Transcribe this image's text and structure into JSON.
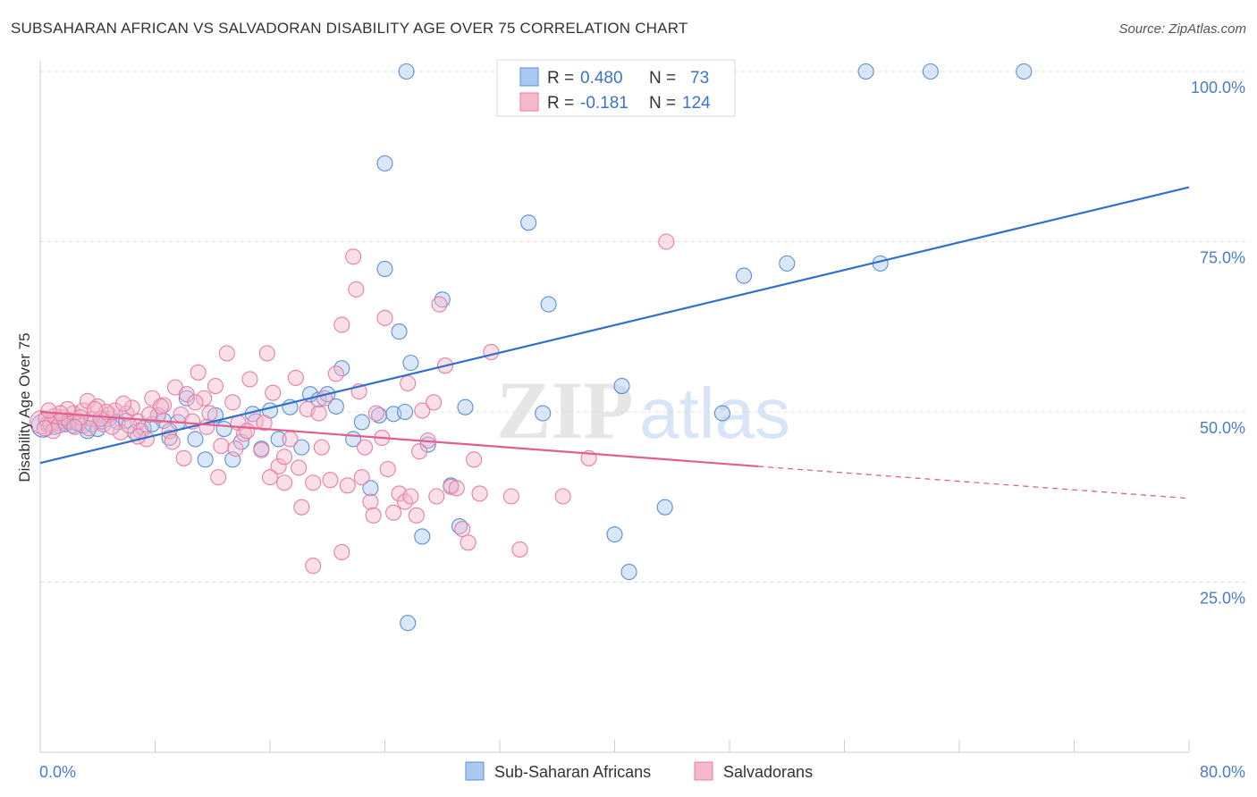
{
  "title": "SUBSAHARAN AFRICAN VS SALVADORAN DISABILITY AGE OVER 75 CORRELATION CHART",
  "source": "Source: ZipAtlas.com",
  "watermark": {
    "zip": "ZIP",
    "atlas": "atlas"
  },
  "legend": {
    "r_label": "R =",
    "n_label": "N =",
    "entries": [
      {
        "r": "0.480",
        "n": "73"
      },
      {
        "r": "-0.181",
        "n": "124"
      }
    ]
  },
  "colors": {
    "blue_fill": "#aac9f0",
    "blue_stroke": "#5b8fd8",
    "blue_line": "#2f6fcf",
    "pink_fill": "#f5b8cb",
    "pink_stroke": "#e67fa3",
    "pink_line": "#e05f8f",
    "tick_text": "#4a7cc9",
    "grid": "#dddddd"
  },
  "chart_data": {
    "type": "scatter",
    "xlabel": "",
    "ylabel": "Disability Age Over 75",
    "xlim": [
      0,
      80
    ],
    "ylim": [
      0,
      100
    ],
    "x_tick_labels": [
      "0.0%",
      "80.0%"
    ],
    "y_ticks": [
      25,
      50,
      75,
      100
    ],
    "y_tick_labels": [
      "25.0%",
      "50.0%",
      "75.0%",
      "100.0%"
    ],
    "grid": true,
    "legend_position": "top-center",
    "series": [
      {
        "name": "Sub-Saharan Africans",
        "color": "blue",
        "trend": {
          "x": [
            0,
            80
          ],
          "y": [
            42.5,
            83.0
          ]
        },
        "points": [
          [
            0.2,
            48.0
          ],
          [
            0.5,
            48.2
          ],
          [
            0.8,
            48.5
          ],
          [
            1.0,
            47.8
          ],
          [
            1.2,
            48.4
          ],
          [
            1.5,
            48.6
          ],
          [
            1.8,
            48.2
          ],
          [
            2.0,
            48.8
          ],
          [
            2.3,
            48.0
          ],
          [
            2.6,
            48.3
          ],
          [
            3.0,
            48.0
          ],
          [
            3.3,
            47.2
          ],
          [
            3.6,
            48.2
          ],
          [
            4.0,
            47.5
          ],
          [
            4.3,
            48.6
          ],
          [
            4.8,
            49.0
          ],
          [
            5.4,
            48.5
          ],
          [
            6.0,
            48.7
          ],
          [
            6.6,
            47.0
          ],
          [
            7.2,
            47.6
          ],
          [
            7.8,
            48.2
          ],
          [
            8.2,
            49.5
          ],
          [
            8.6,
            48.7
          ],
          [
            9.0,
            46.2
          ],
          [
            9.6,
            48.5
          ],
          [
            10.2,
            52.0
          ],
          [
            10.8,
            46.0
          ],
          [
            11.5,
            43.0
          ],
          [
            12.2,
            49.5
          ],
          [
            12.8,
            47.5
          ],
          [
            13.4,
            43.0
          ],
          [
            14.0,
            45.6
          ],
          [
            14.8,
            49.7
          ],
          [
            15.4,
            44.6
          ],
          [
            16.0,
            50.2
          ],
          [
            16.6,
            46.0
          ],
          [
            17.4,
            50.7
          ],
          [
            18.2,
            44.8
          ],
          [
            18.8,
            52.6
          ],
          [
            19.4,
            51.8
          ],
          [
            20.0,
            52.6
          ],
          [
            20.6,
            50.8
          ],
          [
            21.0,
            56.4
          ],
          [
            21.8,
            46.0
          ],
          [
            22.4,
            48.5
          ],
          [
            23.0,
            38.8
          ],
          [
            23.6,
            49.5
          ],
          [
            24.0,
            71.0
          ],
          [
            24.6,
            49.7
          ],
          [
            25.0,
            61.8
          ],
          [
            25.4,
            50.0
          ],
          [
            25.8,
            57.2
          ],
          [
            26.6,
            31.7
          ],
          [
            27.0,
            45.2
          ],
          [
            28.0,
            66.5
          ],
          [
            28.6,
            39.2
          ],
          [
            29.2,
            33.2
          ],
          [
            29.6,
            50.7
          ],
          [
            25.5,
            100.0
          ],
          [
            24.0,
            86.5
          ],
          [
            34.0,
            77.8
          ],
          [
            35.0,
            49.8
          ],
          [
            35.4,
            65.8
          ],
          [
            40.0,
            32.0
          ],
          [
            41.0,
            26.5
          ],
          [
            40.5,
            53.8
          ],
          [
            43.5,
            36.0
          ],
          [
            47.5,
            49.8
          ],
          [
            49.0,
            70.0
          ],
          [
            52.0,
            71.8
          ],
          [
            57.5,
            100.0
          ],
          [
            62.0,
            100.0
          ],
          [
            68.5,
            100.0
          ],
          [
            58.5,
            71.8
          ],
          [
            25.6,
            19.0
          ]
        ]
      },
      {
        "name": "Salvadorans",
        "color": "pink",
        "trend": {
          "x": [
            0,
            50,
            80
          ],
          "y": [
            50.0,
            42.0,
            37.3
          ]
        },
        "points": [
          [
            0.1,
            48.5
          ],
          [
            0.4,
            49.0
          ],
          [
            0.7,
            48.2
          ],
          [
            1.0,
            49.4
          ],
          [
            1.3,
            48.0
          ],
          [
            1.6,
            49.2
          ],
          [
            2.0,
            48.6
          ],
          [
            2.3,
            49.8
          ],
          [
            2.7,
            48.4
          ],
          [
            3.0,
            50.2
          ],
          [
            3.3,
            51.6
          ],
          [
            3.6,
            49.0
          ],
          [
            4.0,
            50.8
          ],
          [
            4.4,
            48.2
          ],
          [
            4.8,
            49.6
          ],
          [
            5.2,
            50.2
          ],
          [
            5.6,
            47.0
          ],
          [
            6.0,
            49.8
          ],
          [
            6.4,
            50.6
          ],
          [
            6.8,
            48.6
          ],
          [
            7.0,
            47.2
          ],
          [
            7.4,
            46.0
          ],
          [
            7.8,
            52.0
          ],
          [
            8.2,
            49.5
          ],
          [
            8.6,
            51.0
          ],
          [
            9.0,
            47.2
          ],
          [
            9.4,
            53.6
          ],
          [
            9.8,
            49.6
          ],
          [
            10.2,
            52.6
          ],
          [
            10.6,
            48.6
          ],
          [
            11.0,
            55.8
          ],
          [
            11.4,
            52.0
          ],
          [
            11.8,
            49.8
          ],
          [
            12.2,
            53.8
          ],
          [
            12.6,
            45.0
          ],
          [
            13.0,
            58.6
          ],
          [
            13.4,
            51.4
          ],
          [
            13.8,
            48.4
          ],
          [
            14.2,
            46.8
          ],
          [
            14.6,
            54.8
          ],
          [
            15.0,
            48.6
          ],
          [
            15.4,
            44.4
          ],
          [
            15.8,
            58.6
          ],
          [
            16.2,
            52.8
          ],
          [
            16.6,
            42.0
          ],
          [
            17.0,
            39.6
          ],
          [
            17.4,
            46.0
          ],
          [
            17.8,
            55.0
          ],
          [
            18.2,
            36.0
          ],
          [
            18.6,
            50.4
          ],
          [
            19.0,
            39.6
          ],
          [
            19.4,
            49.8
          ],
          [
            19.8,
            52.0
          ],
          [
            20.2,
            40.0
          ],
          [
            20.6,
            55.6
          ],
          [
            21.0,
            62.8
          ],
          [
            21.4,
            39.2
          ],
          [
            21.8,
            72.8
          ],
          [
            22.2,
            53.0
          ],
          [
            22.6,
            44.8
          ],
          [
            23.0,
            36.8
          ],
          [
            23.4,
            49.8
          ],
          [
            23.8,
            46.2
          ],
          [
            24.2,
            41.6
          ],
          [
            24.6,
            35.2
          ],
          [
            25.0,
            38.0
          ],
          [
            25.4,
            36.8
          ],
          [
            25.8,
            37.6
          ],
          [
            26.2,
            34.8
          ],
          [
            26.6,
            50.2
          ],
          [
            27.0,
            45.8
          ],
          [
            27.4,
            51.4
          ],
          [
            27.8,
            65.8
          ],
          [
            28.2,
            56.8
          ],
          [
            28.6,
            39.0
          ],
          [
            29.0,
            38.8
          ],
          [
            29.4,
            32.8
          ],
          [
            29.8,
            30.8
          ],
          [
            30.2,
            43.0
          ],
          [
            30.6,
            38.0
          ],
          [
            31.4,
            58.8
          ],
          [
            32.8,
            37.6
          ],
          [
            33.4,
            29.8
          ],
          [
            36.4,
            37.6
          ],
          [
            38.2,
            43.2
          ],
          [
            43.6,
            75.0
          ],
          [
            22.0,
            68.0
          ],
          [
            21.0,
            29.4
          ],
          [
            19.6,
            44.8
          ],
          [
            18.0,
            41.8
          ],
          [
            17.0,
            43.4
          ],
          [
            16.0,
            40.4
          ],
          [
            15.6,
            48.4
          ],
          [
            14.4,
            47.2
          ],
          [
            13.6,
            44.6
          ],
          [
            12.4,
            40.4
          ],
          [
            11.6,
            47.8
          ],
          [
            10.8,
            51.4
          ],
          [
            10.0,
            43.2
          ],
          [
            9.2,
            45.6
          ],
          [
            8.4,
            50.8
          ],
          [
            7.6,
            49.6
          ],
          [
            6.8,
            46.4
          ],
          [
            6.2,
            48.0
          ],
          [
            5.8,
            51.2
          ],
          [
            5.0,
            47.8
          ],
          [
            4.6,
            50.0
          ],
          [
            4.2,
            49.0
          ],
          [
            3.8,
            50.4
          ],
          [
            3.4,
            47.6
          ],
          [
            2.8,
            49.2
          ],
          [
            2.4,
            47.8
          ],
          [
            1.9,
            50.4
          ],
          [
            1.4,
            49.8
          ],
          [
            0.9,
            47.2
          ],
          [
            0.6,
            50.2
          ],
          [
            0.3,
            47.6
          ],
          [
            25.6,
            54.2
          ],
          [
            26.4,
            44.2
          ],
          [
            27.6,
            37.6
          ],
          [
            24.0,
            63.8
          ],
          [
            23.2,
            34.8
          ],
          [
            22.4,
            40.4
          ],
          [
            19.0,
            27.4
          ]
        ]
      }
    ]
  }
}
